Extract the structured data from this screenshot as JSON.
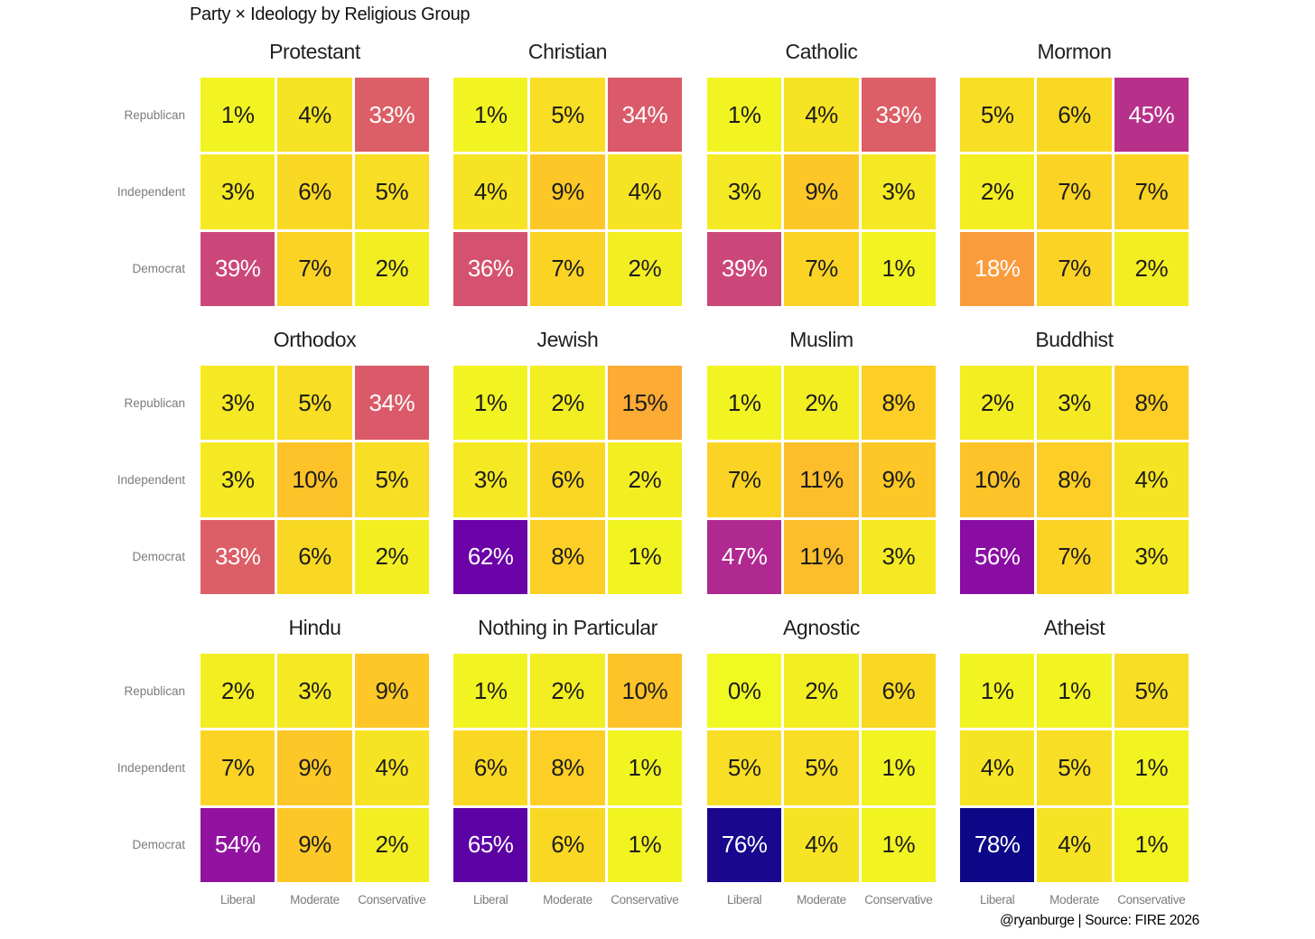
{
  "title": "Party × Ideology by Religious Group",
  "credit": "@ryanburge | Source: FIRE 2026",
  "chart_data": {
    "type": "heatmap",
    "layout": "small-multiples grid, 4 columns x 3 rows of panels, each panel a 3x3 heatmap",
    "rows": [
      "Republican",
      "Independent",
      "Democrat"
    ],
    "columns": [
      "Liberal",
      "Moderate",
      "Conservative"
    ],
    "unit": "%",
    "colormap": "plasma reversed (yellow = low, dark blue = high)",
    "domain": [
      0,
      78
    ],
    "white_text_min": 18,
    "grid_on": false,
    "legend": "none",
    "colors": {
      "background": "#ffffff",
      "cell_text_dark": "#1c1c1c",
      "cell_text_light": "#ffffff",
      "axis_label_gray": "#7b7b7b",
      "plasma_stops": [
        "#0d0887",
        "#46039f",
        "#7201a8",
        "#9c179e",
        "#bd3786",
        "#d8576b",
        "#ed7953",
        "#fb9f3a",
        "#fdca26",
        "#f0f921"
      ]
    },
    "panels": [
      {
        "group": "Protestant",
        "values": [
          [
            1,
            4,
            33
          ],
          [
            3,
            6,
            5
          ],
          [
            39,
            7,
            2
          ]
        ]
      },
      {
        "group": "Christian",
        "values": [
          [
            1,
            5,
            34
          ],
          [
            4,
            9,
            4
          ],
          [
            36,
            7,
            2
          ]
        ]
      },
      {
        "group": "Catholic",
        "values": [
          [
            1,
            4,
            33
          ],
          [
            3,
            9,
            3
          ],
          [
            39,
            7,
            1
          ]
        ]
      },
      {
        "group": "Mormon",
        "values": [
          [
            5,
            6,
            45
          ],
          [
            2,
            7,
            7
          ],
          [
            18,
            7,
            2
          ]
        ]
      },
      {
        "group": "Orthodox",
        "values": [
          [
            3,
            5,
            34
          ],
          [
            3,
            10,
            5
          ],
          [
            33,
            6,
            2
          ]
        ]
      },
      {
        "group": "Jewish",
        "values": [
          [
            1,
            2,
            15
          ],
          [
            3,
            6,
            2
          ],
          [
            62,
            8,
            1
          ]
        ]
      },
      {
        "group": "Muslim",
        "values": [
          [
            1,
            2,
            8
          ],
          [
            7,
            11,
            9
          ],
          [
            47,
            11,
            3
          ]
        ]
      },
      {
        "group": "Buddhist",
        "values": [
          [
            2,
            3,
            8
          ],
          [
            10,
            8,
            4
          ],
          [
            56,
            7,
            3
          ]
        ]
      },
      {
        "group": "Hindu",
        "values": [
          [
            2,
            3,
            9
          ],
          [
            7,
            9,
            4
          ],
          [
            54,
            9,
            2
          ]
        ]
      },
      {
        "group": "Nothing in Particular",
        "values": [
          [
            1,
            2,
            10
          ],
          [
            6,
            8,
            1
          ],
          [
            65,
            6,
            1
          ]
        ]
      },
      {
        "group": "Agnostic",
        "values": [
          [
            0,
            2,
            6
          ],
          [
            5,
            5,
            1
          ],
          [
            76,
            4,
            1
          ]
        ]
      },
      {
        "group": "Atheist",
        "values": [
          [
            1,
            1,
            5
          ],
          [
            4,
            5,
            1
          ],
          [
            78,
            4,
            1
          ]
        ]
      }
    ]
  }
}
